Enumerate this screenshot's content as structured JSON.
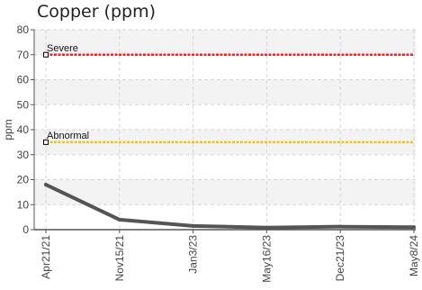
{
  "chart_data": {
    "type": "line",
    "title": "Copper (ppm)",
    "xlabel": "",
    "ylabel": "ppm",
    "ylim": [
      0,
      80
    ],
    "y_ticks": [
      0,
      10,
      20,
      30,
      40,
      50,
      60,
      70,
      80
    ],
    "grid": true,
    "categories": [
      "Apr21/21",
      "Nov15/21",
      "Jan3/23",
      "May16/23",
      "Dec21/23",
      "May8/24"
    ],
    "series": [
      {
        "values": [
          18,
          4,
          1.5,
          0.8,
          1.2,
          1
        ],
        "color": "#555555"
      }
    ],
    "reference_lines": [
      {
        "label": "Severe",
        "value": 70,
        "color": "#e8262a"
      },
      {
        "label": "Abnormal",
        "value": 35,
        "color": "#f2c218"
      }
    ]
  }
}
